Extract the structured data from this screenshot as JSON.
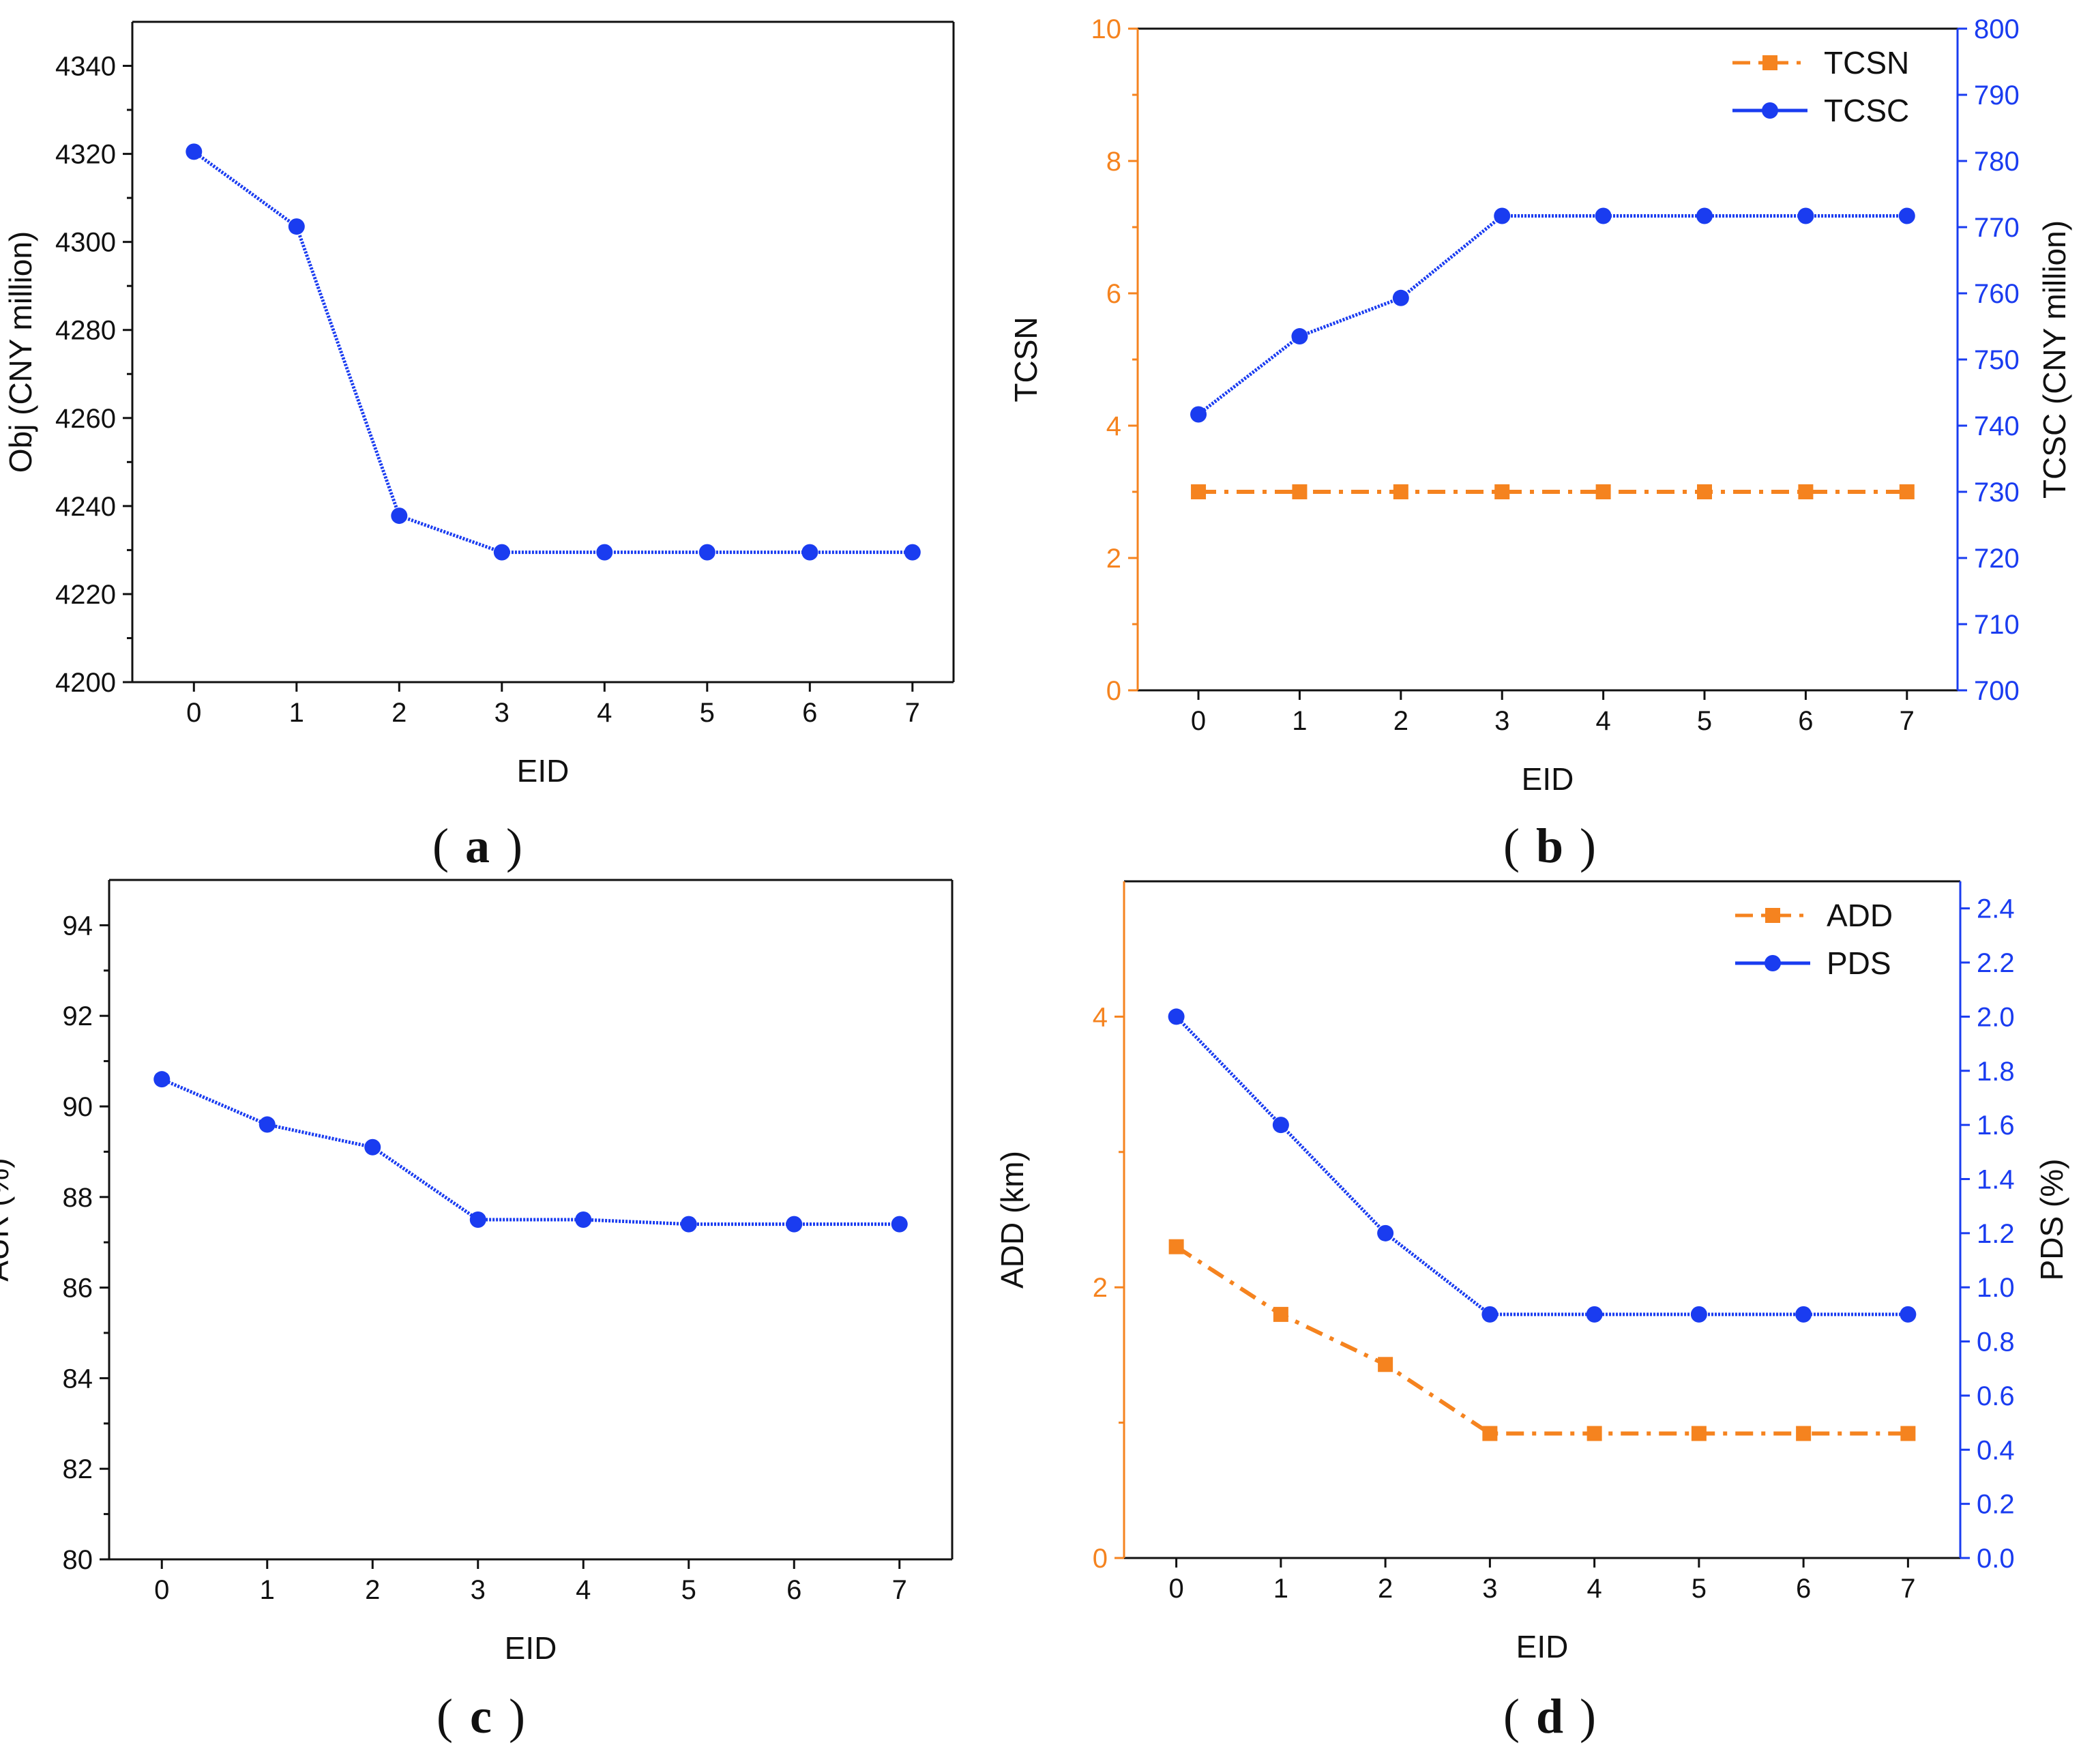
{
  "colors": {
    "blue": "#1a3cf0",
    "orange": "#f5831f",
    "black": "#111111"
  },
  "panels": [
    {
      "letter": "a"
    },
    {
      "letter": "b"
    },
    {
      "letter": "c"
    },
    {
      "letter": "d"
    }
  ],
  "chart_data": [
    {
      "id": "a",
      "type": "line",
      "title": "",
      "xlabel": "EID",
      "ylabel": "Obj (CNY million)",
      "x": [
        0,
        1,
        2,
        3,
        4,
        5,
        6,
        7
      ],
      "xlim": [
        -0.6,
        7.4
      ],
      "ylim": [
        4200,
        4350
      ],
      "yticks": [
        4200,
        4220,
        4240,
        4260,
        4280,
        4300,
        4320,
        4340
      ],
      "series": [
        {
          "name": "Obj",
          "axis": "left",
          "color": "#1a3cf0",
          "marker": "circle",
          "dash": "dense",
          "values": [
            4320.5,
            4303.5,
            4237.8,
            4229.5,
            4229.5,
            4229.5,
            4229.5,
            4229.5
          ]
        }
      ]
    },
    {
      "id": "b",
      "type": "line",
      "title": "",
      "xlabel": "EID",
      "ylabel": "TCSN",
      "y2label": "TCSC (CNY million)",
      "x": [
        0,
        1,
        2,
        3,
        4,
        5,
        6,
        7
      ],
      "xlim": [
        -0.6,
        7.5
      ],
      "ylim": [
        0,
        10
      ],
      "yticks": [
        0,
        2,
        4,
        6,
        8,
        10
      ],
      "y2lim": [
        700,
        800
      ],
      "y2ticks": [
        700,
        710,
        720,
        730,
        740,
        750,
        760,
        770,
        780,
        790,
        800
      ],
      "legend_position": "top-right",
      "series": [
        {
          "name": "TCSN",
          "axis": "left",
          "color": "#f5831f",
          "marker": "square",
          "dash": "dashdot",
          "values": [
            3,
            3,
            3,
            3,
            3,
            3,
            3,
            3
          ]
        },
        {
          "name": "TCSC",
          "axis": "right",
          "color": "#1a3cf0",
          "marker": "circle",
          "dash": "dense",
          "values": [
            741.7,
            753.5,
            759.3,
            771.7,
            771.7,
            771.7,
            771.7,
            771.7
          ]
        }
      ]
    },
    {
      "id": "c",
      "type": "line",
      "title": "",
      "xlabel": "EID",
      "ylabel": "AUR (%)",
      "x": [
        0,
        1,
        2,
        3,
        4,
        5,
        6,
        7
      ],
      "xlim": [
        -0.5,
        7.5
      ],
      "ylim": [
        80,
        95
      ],
      "yticks": [
        80,
        82,
        84,
        86,
        88,
        90,
        92,
        94
      ],
      "series": [
        {
          "name": "AUR",
          "axis": "left",
          "color": "#1a3cf0",
          "marker": "circle",
          "dash": "dense",
          "values": [
            90.6,
            89.6,
            89.1,
            87.5,
            87.5,
            87.4,
            87.4,
            87.4
          ]
        }
      ]
    },
    {
      "id": "d",
      "type": "line",
      "title": "",
      "xlabel": "EID",
      "ylabel": "ADD (km)",
      "y2label": "PDS (%)",
      "x": [
        0,
        1,
        2,
        3,
        4,
        5,
        6,
        7
      ],
      "xlim": [
        -0.5,
        7.5
      ],
      "ylim": [
        0,
        5
      ],
      "yticks": [
        0,
        2,
        4
      ],
      "y2lim": [
        0,
        2.5
      ],
      "y2ticks": [
        0.0,
        0.2,
        0.4,
        0.6,
        0.8,
        1.0,
        1.2,
        1.4,
        1.6,
        1.8,
        2.0,
        2.2,
        2.4
      ],
      "y2tick_labels": [
        "0.0",
        "0.2",
        "0.4",
        "0.6",
        "0.8",
        "1.0",
        "1.2",
        "1.4",
        "1.6",
        "1.8",
        "2.0",
        "2.2",
        "2.4"
      ],
      "legend_position": "top-right",
      "series": [
        {
          "name": "ADD",
          "axis": "left",
          "color": "#f5831f",
          "marker": "square",
          "dash": "dashdot",
          "values": [
            2.3,
            1.8,
            1.43,
            0.92,
            0.92,
            0.92,
            0.92,
            0.92
          ]
        },
        {
          "name": "PDS",
          "axis": "right",
          "color": "#1a3cf0",
          "marker": "circle",
          "dash": "dense",
          "values": [
            2.0,
            1.6,
            1.2,
            0.9,
            0.9,
            0.9,
            0.9,
            0.9
          ]
        }
      ]
    }
  ]
}
